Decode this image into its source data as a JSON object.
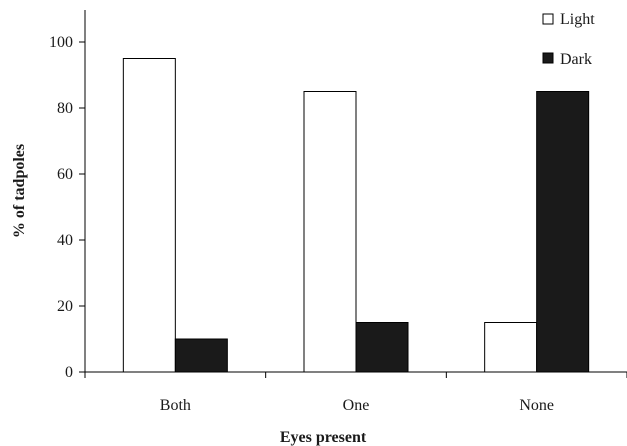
{
  "chart_data": {
    "type": "bar",
    "title": "",
    "xlabel": "Eyes present",
    "ylabel": "% of tadpoles",
    "categories": [
      "Both",
      "One",
      "None"
    ],
    "series": [
      {
        "name": "Light",
        "values": [
          95,
          85,
          15
        ],
        "color": "#ffffff",
        "stroke": "#000000"
      },
      {
        "name": "Dark",
        "values": [
          10,
          15,
          85
        ],
        "color": "#1a1a1a",
        "stroke": "#000000"
      }
    ],
    "ylim": [
      0,
      110
    ],
    "yticks": [
      0,
      20,
      40,
      60,
      80,
      100
    ],
    "grid": false,
    "legend": "top-right"
  }
}
